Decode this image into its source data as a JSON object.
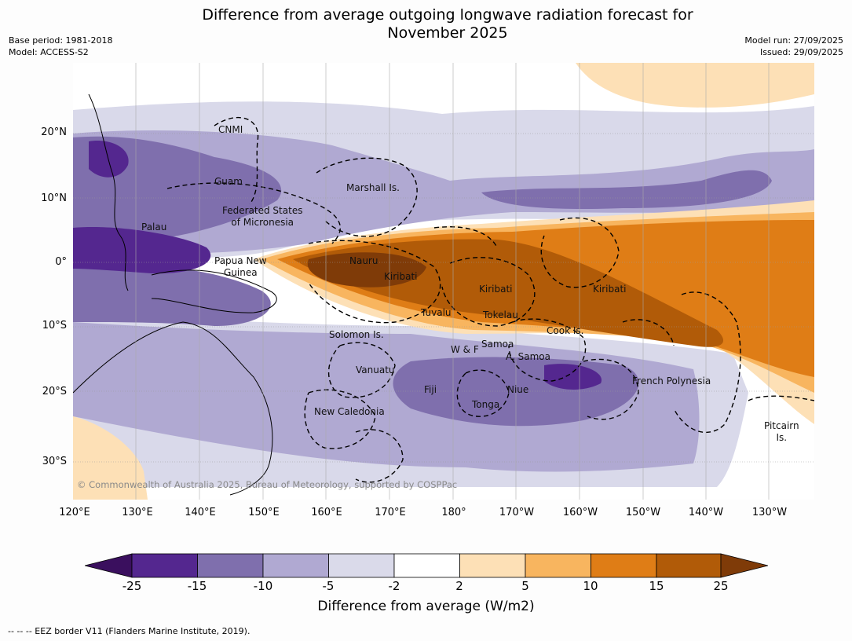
{
  "title_line1": "Difference from average outgoing longwave radiation forecast for",
  "title_line2": "November 2025",
  "base_period": "Base period: 1981-2018",
  "model": "Model: ACCESS-S2",
  "model_run": "Model run: 27/09/2025",
  "issued": "Issued: 29/09/2025",
  "lat_labels": [
    "20°N",
    "10°N",
    "0°",
    "10°S",
    "20°S",
    "30°S"
  ],
  "lon_labels": [
    "120°E",
    "130°E",
    "140°E",
    "150°E",
    "160°E",
    "170°E",
    "180°",
    "170°W",
    "160°W",
    "150°W",
    "140°W",
    "130°W"
  ],
  "places": {
    "cnmi": "CNMI",
    "guam": "Guam",
    "fsm": "Federated States\nof Micronesia",
    "palau": "Palau",
    "marshall": "Marshall Is.",
    "png": "Papua New\nGuinea",
    "nauru": "Nauru",
    "kiribati_w": "Kiribati",
    "kiribati_c": "Kiribati",
    "kiribati_e": "Kiribati",
    "tuvalu": "Tuvalu",
    "tokelau": "Tokelau",
    "cook": "Cook Is.",
    "solomon": "Solomon Is.",
    "wf": "W & F",
    "samoa": "Samoa",
    "asamoa": "A. Samoa",
    "vanuatu": "Vanuatu",
    "fiji": "Fiji",
    "niue": "Niue",
    "tonga": "Tonga",
    "newcal": "New Caledonia",
    "fp": "French Polynesia",
    "pitcairn": "Pitcairn\nIs."
  },
  "copyright": "© Commonwealth of Australia 2025, Bureau of Meteorology, supported by COSPPac",
  "colorbar": {
    "ticks": [
      "-25",
      "-15",
      "-10",
      "-5",
      "-2",
      "2",
      "5",
      "10",
      "15",
      "25"
    ],
    "colors": [
      "#3a0f5e",
      "#54278f",
      "#7f6fad",
      "#b0a9d2",
      "#dadaea",
      "#ffffff",
      "#fde0b6",
      "#f8b55f",
      "#df7d16",
      "#b15b08",
      "#7f3b08"
    ],
    "label": "Difference from average (W/m2)"
  },
  "footnote": "--  --  -- EEZ border V11 (Flanders Marine Institute, 2019)."
}
